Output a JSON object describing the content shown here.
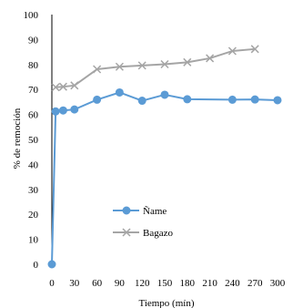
{
  "chart_data": {
    "type": "line",
    "title": "",
    "xlabel": "Tiempo (mín)",
    "ylabel": "% de remoción",
    "xlim": [
      0,
      300
    ],
    "ylim": [
      0,
      100
    ],
    "x_ticks": [
      0,
      30,
      60,
      90,
      120,
      150,
      180,
      210,
      240,
      270,
      300
    ],
    "y_ticks": [
      0,
      10,
      20,
      30,
      40,
      50,
      60,
      70,
      80,
      90,
      100
    ],
    "grid": false,
    "legend_position": "center-left",
    "series": [
      {
        "name": "Ñame",
        "color": "#5b9bd5",
        "marker": "circle",
        "x": [
          0,
          5,
          15,
          30,
          60,
          90,
          120,
          150,
          180,
          240,
          270,
          300
        ],
        "y": [
          0,
          61.2,
          61.6,
          62.0,
          65.9,
          68.8,
          65.5,
          67.9,
          66.1,
          65.9,
          66.0,
          65.7
        ]
      },
      {
        "name": "Bagazo",
        "color": "#a5a5a5",
        "marker": "x",
        "x": [
          5,
          15,
          30,
          60,
          90,
          120,
          150,
          180,
          210,
          240,
          270
        ],
        "y": [
          70.9,
          71.1,
          71.6,
          78.1,
          79.1,
          79.6,
          80.1,
          80.9,
          82.5,
          85.4,
          86.2
        ]
      }
    ]
  }
}
